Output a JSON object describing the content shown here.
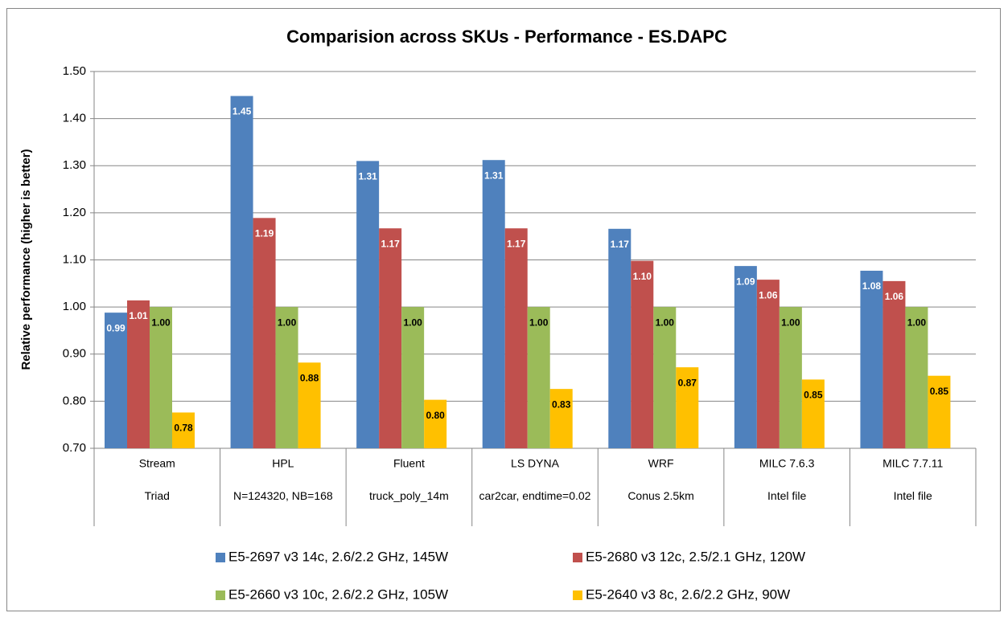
{
  "chart_data": {
    "type": "bar",
    "title": "Comparision across SKUs -  Performance - ES.DAPC",
    "y_label": "Relative performance  (higher is better)",
    "categories": [
      "Stream",
      "HPL",
      "Fluent",
      "LS DYNA",
      "WRF",
      "MILC 7.6.3",
      "MILC 7.7.11"
    ],
    "category_details": [
      "Triad",
      "N=124320, NB=168",
      "truck_poly_14m",
      "car2car, endtime=0.02",
      "Conus 2.5km",
      "Intel file",
      "Intel file"
    ],
    "series": [
      {
        "name": "E5-2697 v3 14c, 2.6/2.2 GHz, 145W",
        "color": "#4F81BD",
        "label_color": "#ffffff",
        "values": [
          0.988,
          1.448,
          1.31,
          1.312,
          1.166,
          1.087,
          1.077
        ],
        "value_labels": [
          "0.99",
          "1.45",
          "1.31",
          "1.31",
          "1.17",
          "1.09",
          "1.08"
        ]
      },
      {
        "name": "E5-2680 v3 12c, 2.5/2.1 GHz, 120W",
        "color": "#C0504D",
        "label_color": "#ffffff",
        "values": [
          1.014,
          1.189,
          1.167,
          1.167,
          1.098,
          1.058,
          1.055
        ],
        "value_labels": [
          "1.01",
          "1.19",
          "1.17",
          "1.17",
          "1.10",
          "1.06",
          "1.06"
        ]
      },
      {
        "name": "E5-2660 v3 10c, 2.6/2.2 GHz, 105W",
        "color": "#9BBB59",
        "label_color": "#000000",
        "values": [
          1,
          1,
          1,
          1,
          1,
          1,
          1
        ],
        "value_labels": [
          "1.00",
          "1.00",
          "1.00",
          "1.00",
          "1.00",
          "1.00",
          "1.00"
        ]
      },
      {
        "name": "E5-2640 v3 8c, 2.6/2.2 GHz, 90W",
        "color": "#FFC000",
        "label_color": "#000000",
        "values": [
          0.776,
          0.882,
          0.803,
          0.826,
          0.872,
          0.846,
          0.854
        ],
        "value_labels": [
          "0.78",
          "0.88",
          "0.80",
          "0.83",
          "0.87",
          "0.85",
          "0.85"
        ]
      }
    ],
    "ylim": [
      0.7,
      1.5
    ],
    "yticks": [
      {
        "value": 0.7,
        "label": "0.70"
      },
      {
        "value": 0.8,
        "label": "0.80"
      },
      {
        "value": 0.9,
        "label": "0.90"
      },
      {
        "value": 1.0,
        "label": "1.00"
      },
      {
        "value": 1.1,
        "label": "1.10"
      },
      {
        "value": 1.2,
        "label": "1.20"
      },
      {
        "value": 1.3,
        "label": "1.30"
      },
      {
        "value": 1.4,
        "label": "1.40"
      },
      {
        "value": 1.5,
        "label": "1.50"
      }
    ],
    "grid": true,
    "legend": "bottom"
  }
}
